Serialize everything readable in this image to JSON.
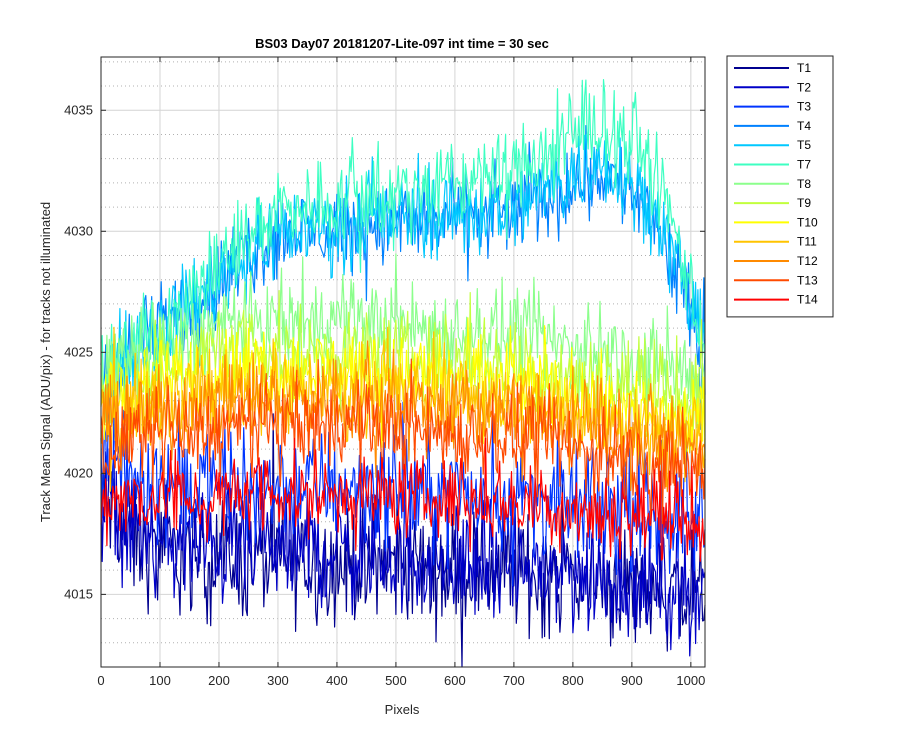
{
  "chart_data": {
    "type": "line",
    "title": "BS03 Day07 20181207-Lite-097 int time = 30 sec",
    "xlabel": "Pixels",
    "ylabel": "Track Mean Signal (ADU/pix) - for tracks not illuminated",
    "xlim": [
      0,
      1024
    ],
    "ylim": [
      4012,
      4037.2
    ],
    "xticks": [
      0,
      100,
      200,
      300,
      400,
      500,
      600,
      700,
      800,
      900,
      1000
    ],
    "yticks": [
      4015,
      4020,
      4025,
      4030,
      4035
    ],
    "grid": {
      "major": true,
      "minor_y": true
    },
    "legend_position": "outside-top-right",
    "series": [
      {
        "name": "T1",
        "color": "#00008F",
        "level": [
          [
            0,
            4019
          ],
          [
            60,
            4017
          ],
          [
            150,
            4016.5
          ],
          [
            400,
            4016.3
          ],
          [
            700,
            4016
          ],
          [
            900,
            4015.3
          ],
          [
            1024,
            4015
          ]
        ],
        "noise": 1.5
      },
      {
        "name": "T2",
        "color": "#0000C8",
        "level": [
          [
            0,
            4019
          ],
          [
            60,
            4017.5
          ],
          [
            150,
            4017
          ],
          [
            400,
            4016.8
          ],
          [
            700,
            4016.2
          ],
          [
            900,
            4015.6
          ],
          [
            1024,
            4015.2
          ]
        ],
        "noise": 1.5
      },
      {
        "name": "T3",
        "color": "#0035FF",
        "level": [
          [
            0,
            4020.5
          ],
          [
            150,
            4019.5
          ],
          [
            400,
            4019.5
          ],
          [
            700,
            4019
          ],
          [
            1024,
            4018
          ]
        ],
        "noise": 1.4
      },
      {
        "name": "T4",
        "color": "#0081FF",
        "level": [
          [
            0,
            4024
          ],
          [
            100,
            4026
          ],
          [
            200,
            4028
          ],
          [
            300,
            4030
          ],
          [
            500,
            4030.3
          ],
          [
            700,
            4030.8
          ],
          [
            850,
            4032.5
          ],
          [
            930,
            4031
          ],
          [
            980,
            4028
          ],
          [
            1024,
            4024.5
          ]
        ],
        "noise": 1.1
      },
      {
        "name": "T5",
        "color": "#00C8FF",
        "level": [
          [
            0,
            4024
          ],
          [
            100,
            4026
          ],
          [
            200,
            4028
          ],
          [
            300,
            4030
          ],
          [
            500,
            4030.5
          ],
          [
            700,
            4031
          ],
          [
            850,
            4033
          ],
          [
            930,
            4031.5
          ],
          [
            980,
            4028.5
          ],
          [
            1024,
            4025
          ]
        ],
        "noise": 1.1
      },
      {
        "name": "T7",
        "color": "#3DFFC2",
        "level": [
          [
            0,
            4024
          ],
          [
            100,
            4026
          ],
          [
            200,
            4028.5
          ],
          [
            300,
            4031
          ],
          [
            500,
            4031.5
          ],
          [
            700,
            4032.5
          ],
          [
            850,
            4034.5
          ],
          [
            930,
            4033
          ],
          [
            980,
            4029.5
          ],
          [
            1024,
            4025.5
          ]
        ],
        "noise": 1.1
      },
      {
        "name": "T8",
        "color": "#8CFF8C",
        "level": [
          [
            0,
            4024
          ],
          [
            200,
            4026
          ],
          [
            400,
            4026.3
          ],
          [
            700,
            4025.8
          ],
          [
            1024,
            4024
          ]
        ],
        "noise": 1.1
      },
      {
        "name": "T9",
        "color": "#C2FF3D",
        "level": [
          [
            0,
            4023.5
          ],
          [
            200,
            4025
          ],
          [
            400,
            4025
          ],
          [
            700,
            4024.5
          ],
          [
            1024,
            4023
          ]
        ],
        "noise": 1.1
      },
      {
        "name": "T10",
        "color": "#FFFF00",
        "level": [
          [
            0,
            4023
          ],
          [
            200,
            4024.3
          ],
          [
            400,
            4024.3
          ],
          [
            700,
            4023.8
          ],
          [
            1024,
            4022
          ]
        ],
        "noise": 1.1
      },
      {
        "name": "T11",
        "color": "#FFC400",
        "level": [
          [
            0,
            4022.5
          ],
          [
            200,
            4023.5
          ],
          [
            400,
            4023.5
          ],
          [
            700,
            4023
          ],
          [
            1024,
            4021.5
          ]
        ],
        "noise": 1.1
      },
      {
        "name": "T12",
        "color": "#FF8A00",
        "level": [
          [
            0,
            4022
          ],
          [
            200,
            4023
          ],
          [
            400,
            4023
          ],
          [
            700,
            4022.5
          ],
          [
            1024,
            4021
          ]
        ],
        "noise": 1.1
      },
      {
        "name": "T13",
        "color": "#FF4A00",
        "level": [
          [
            0,
            4021
          ],
          [
            200,
            4021.8
          ],
          [
            400,
            4022
          ],
          [
            700,
            4021.5
          ],
          [
            1024,
            4020
          ]
        ],
        "noise": 1.1
      },
      {
        "name": "T14",
        "color": "#FF0000",
        "level": [
          [
            0,
            4019
          ],
          [
            200,
            4019
          ],
          [
            400,
            4019.2
          ],
          [
            700,
            4018.8
          ],
          [
            1024,
            4018
          ]
        ],
        "noise": 1.0
      }
    ]
  }
}
